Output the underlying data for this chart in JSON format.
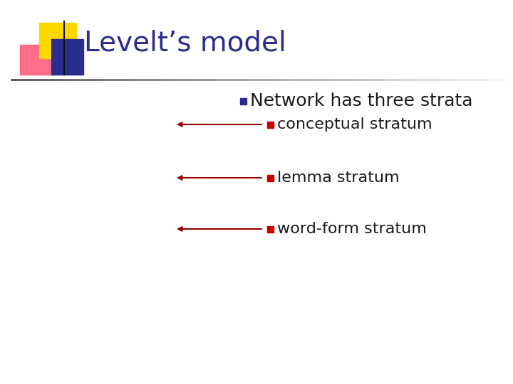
{
  "title": "Levelt’s model",
  "title_color": "#2B2D8E",
  "title_fontsize": 28,
  "bg_color": "#ffffff",
  "bullet_main_text": "Network has three strata",
  "bullet_main_color": "#1a1a1a",
  "bullet_main_fontsize": 18,
  "bullet_main_marker_color": "#2B2D8E",
  "sub_bullets": [
    "conceptual stratum",
    "lemma stratum",
    "word-form stratum"
  ],
  "sub_bullet_color": "#1a1a1a",
  "sub_bullet_fontsize": 16,
  "sub_bullet_marker_color": "#cc0000",
  "arrow_color": "#990000",
  "logo_yellow": "#FFD700",
  "logo_pink": "#FF5577",
  "logo_blue": "#2B2D8E",
  "logo_blue_light": "#6666cc"
}
